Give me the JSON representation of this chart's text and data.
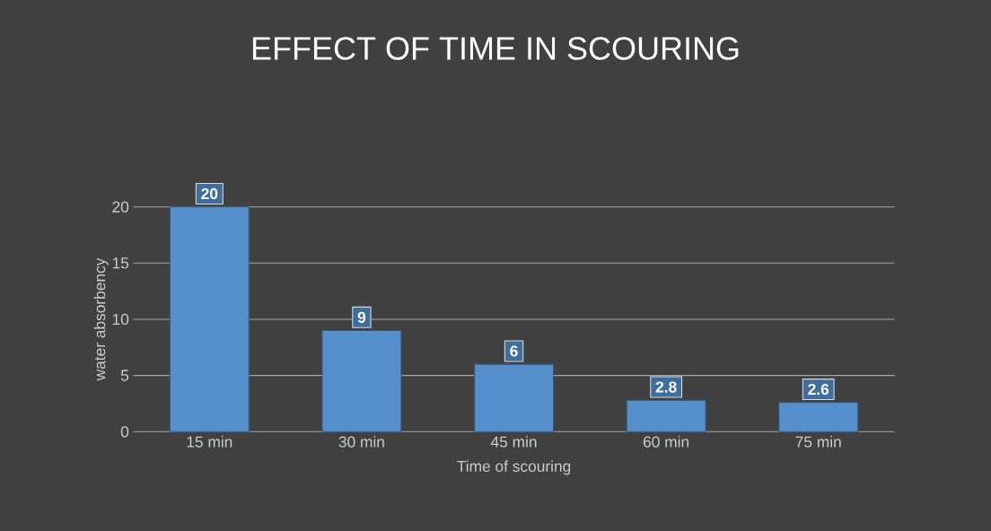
{
  "chart_data": {
    "type": "bar",
    "title": "EFFECT OF TIME IN SCOURING",
    "xlabel": "Time of scouring",
    "ylabel": "water absorbency",
    "categories": [
      "15 min",
      "30 min",
      "45 min",
      "60 min",
      "75 min"
    ],
    "values": [
      20,
      9,
      6,
      2.8,
      2.6
    ],
    "color": "#5590cc",
    "data_labels": true,
    "ylim": [
      0,
      20
    ],
    "yticks": [
      0,
      5,
      10,
      15,
      20
    ],
    "grid": "y"
  }
}
